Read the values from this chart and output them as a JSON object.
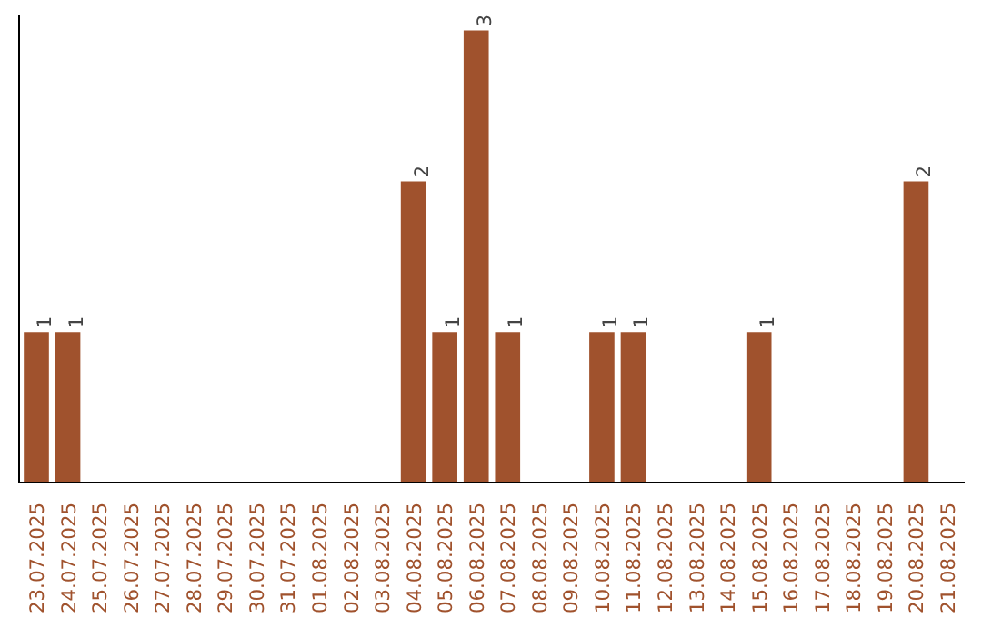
{
  "chart_data": {
    "type": "bar",
    "categories": [
      "23.07.2025",
      "24.07.2025",
      "25.07.2025",
      "26.07.2025",
      "27.07.2025",
      "28.07.2025",
      "29.07.2025",
      "30.07.2025",
      "31.07.2025",
      "01.08.2025",
      "02.08.2025",
      "03.08.2025",
      "04.08.2025",
      "05.08.2025",
      "06.08.2025",
      "07.08.2025",
      "08.08.2025",
      "09.08.2025",
      "10.08.2025",
      "11.08.2025",
      "12.08.2025",
      "13.08.2025",
      "14.08.2025",
      "15.08.2025",
      "16.08.2025",
      "17.08.2025",
      "18.08.2025",
      "19.08.2025",
      "20.08.2025",
      "21.08.2025"
    ],
    "values": [
      1,
      1,
      0,
      0,
      0,
      0,
      0,
      0,
      0,
      0,
      0,
      0,
      2,
      1,
      3,
      1,
      0,
      0,
      1,
      1,
      0,
      0,
      0,
      1,
      0,
      0,
      0,
      0,
      2,
      0
    ],
    "value_labels": [
      "1",
      "1",
      null,
      null,
      null,
      null,
      null,
      null,
      null,
      null,
      null,
      null,
      "2",
      "1",
      "3",
      "1",
      null,
      null,
      "1",
      "1",
      null,
      null,
      null,
      "1",
      null,
      null,
      null,
      null,
      "2",
      null
    ],
    "color": "#a0522d",
    "ylim": [
      0,
      3.1
    ],
    "grid": false
  }
}
